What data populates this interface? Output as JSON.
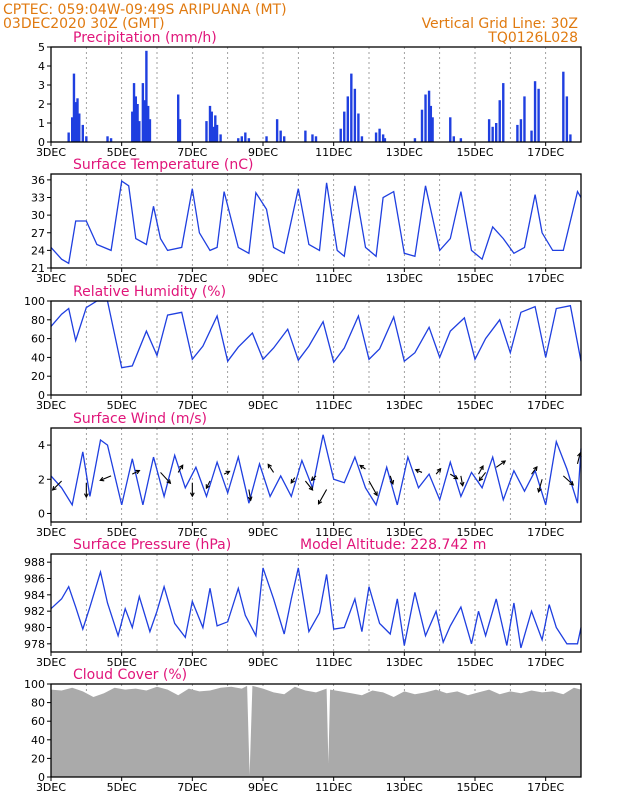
{
  "header": {
    "line1_left": "CPTEC:   059:04W-09:49S   ARIPUANA (MT)",
    "line2_left": "03DEC2020 30Z (GMT)",
    "line1_right": "Vertical Grid Line: 30Z",
    "line2_right": "TQ0126L028"
  },
  "x_labels": [
    "3DEC",
    "5DEC",
    "7DEC",
    "9DEC",
    "11DEC",
    "13DEC",
    "15DEC",
    "17DEC"
  ],
  "x_range_days": [
    3,
    18
  ],
  "colors": {
    "header": "#e07a10",
    "title": "#e0157a",
    "series": "#1f3fe0",
    "cloud": "#aaaaaa"
  },
  "chart_data": [
    {
      "type": "bar",
      "title": "Precipitation (mm/h)",
      "ylim": [
        0,
        5
      ],
      "yticks": [
        "0",
        "1",
        "2",
        "3",
        "4",
        "5"
      ],
      "grid": true,
      "x": [
        3.5,
        3.6,
        3.65,
        3.7,
        3.75,
        3.8,
        3.9,
        4.0,
        4.6,
        4.7,
        5.3,
        5.35,
        5.4,
        5.45,
        5.5,
        5.6,
        5.65,
        5.7,
        5.75,
        5.8,
        6.6,
        6.65,
        7.4,
        7.5,
        7.55,
        7.6,
        7.65,
        7.7,
        7.8,
        8.3,
        8.4,
        8.5,
        8.6,
        9.1,
        9.4,
        9.5,
        9.6,
        10.2,
        10.4,
        10.5,
        11.2,
        11.3,
        11.4,
        11.5,
        11.6,
        11.7,
        11.8,
        12.2,
        12.3,
        12.4,
        12.45,
        13.3,
        13.5,
        13.6,
        13.7,
        13.75,
        13.8,
        14.3,
        14.4,
        14.6,
        15.4,
        15.5,
        15.6,
        15.7,
        15.8,
        16.2,
        16.3,
        16.4,
        16.6,
        16.7,
        16.8,
        17.5,
        17.6,
        17.7
      ],
      "values": [
        0.5,
        1.3,
        3.6,
        2.1,
        2.3,
        1.5,
        0.9,
        0.3,
        0.3,
        0.2,
        1.6,
        3.1,
        2.4,
        2.0,
        1.1,
        3.1,
        2.2,
        4.8,
        1.9,
        1.2,
        2.5,
        1.2,
        1.1,
        1.9,
        1.6,
        0.8,
        1.4,
        0.9,
        0.4,
        0.2,
        0.3,
        0.5,
        0.2,
        0.3,
        1.2,
        0.6,
        0.3,
        0.6,
        0.4,
        0.3,
        0.7,
        1.6,
        2.4,
        3.6,
        2.8,
        1.5,
        0.3,
        0.5,
        0.7,
        0.4,
        0.2,
        0.2,
        1.7,
        2.5,
        2.7,
        1.9,
        1.3,
        1.3,
        0.3,
        0.2,
        1.2,
        0.8,
        1.0,
        2.2,
        3.1,
        0.9,
        1.2,
        2.4,
        0.6,
        3.2,
        2.8,
        3.7,
        2.4,
        0.4
      ]
    },
    {
      "type": "line",
      "title": "Surface Temperature (nC)",
      "ylim": [
        21,
        37
      ],
      "yticks": [
        "21",
        "24",
        "27",
        "30",
        "33",
        "36"
      ],
      "grid": true,
      "x": [
        3.0,
        3.3,
        3.5,
        3.7,
        4.0,
        4.3,
        4.7,
        5.0,
        5.2,
        5.4,
        5.7,
        5.9,
        6.1,
        6.3,
        6.7,
        7.0,
        7.2,
        7.5,
        7.7,
        7.9,
        8.3,
        8.6,
        8.8,
        9.1,
        9.3,
        9.6,
        10.0,
        10.3,
        10.6,
        10.8,
        11.1,
        11.3,
        11.6,
        11.9,
        12.2,
        12.4,
        12.7,
        13.0,
        13.3,
        13.6,
        14.0,
        14.3,
        14.6,
        14.9,
        15.2,
        15.5,
        15.8,
        16.1,
        16.4,
        16.7,
        16.9,
        17.2,
        17.5,
        17.9,
        18.0
      ],
      "values": [
        24.5,
        22.5,
        21.8,
        29.0,
        29.0,
        25.0,
        24.0,
        35.8,
        35.0,
        26.0,
        25.0,
        31.5,
        26.0,
        24.0,
        24.5,
        34.5,
        27.0,
        24.0,
        24.5,
        34.0,
        24.5,
        23.5,
        33.8,
        31.0,
        24.5,
        23.5,
        34.5,
        25.0,
        24.0,
        35.5,
        24.0,
        23.0,
        35.0,
        24.5,
        23.0,
        33.0,
        34.0,
        23.5,
        23.0,
        35.0,
        24.0,
        26.0,
        34.0,
        24.0,
        22.5,
        28.0,
        26.0,
        23.5,
        24.5,
        33.5,
        27.0,
        24.0,
        24.0,
        34.0,
        33.0
      ]
    },
    {
      "type": "line",
      "title": "Relative Humidity (%)",
      "ylim": [
        0,
        100
      ],
      "yticks": [
        "0",
        "20",
        "40",
        "60",
        "80",
        "100"
      ],
      "grid": true,
      "x": [
        3.0,
        3.3,
        3.5,
        3.7,
        4.0,
        4.3,
        4.6,
        5.0,
        5.3,
        5.7,
        6.0,
        6.3,
        6.7,
        7.0,
        7.3,
        7.7,
        8.0,
        8.3,
        8.7,
        9.0,
        9.3,
        9.7,
        10.0,
        10.3,
        10.7,
        11.0,
        11.3,
        11.7,
        12.0,
        12.3,
        12.7,
        13.0,
        13.3,
        13.7,
        14.0,
        14.3,
        14.7,
        15.0,
        15.3,
        15.7,
        16.0,
        16.3,
        16.7,
        17.0,
        17.3,
        17.7,
        18.0
      ],
      "values": [
        73,
        86,
        92,
        58,
        93,
        100,
        100,
        29,
        31,
        68,
        42,
        85,
        88,
        38,
        52,
        84,
        36,
        51,
        66,
        38,
        50,
        70,
        37,
        52,
        78,
        35,
        50,
        84,
        38,
        49,
        83,
        36,
        45,
        72,
        40,
        68,
        82,
        38,
        60,
        80,
        45,
        88,
        94,
        40,
        92,
        95,
        36
      ]
    },
    {
      "type": "line",
      "title": "Surface Wind (m/s)",
      "ylim": [
        -0.5,
        5
      ],
      "yticks": [
        "0",
        "2",
        "4"
      ],
      "grid": true,
      "x": [
        3.0,
        3.3,
        3.6,
        3.9,
        4.1,
        4.4,
        4.6,
        5.0,
        5.3,
        5.6,
        5.9,
        6.2,
        6.5,
        6.8,
        7.1,
        7.4,
        7.7,
        8.0,
        8.3,
        8.6,
        8.9,
        9.2,
        9.5,
        9.8,
        10.1,
        10.4,
        10.7,
        11.0,
        11.3,
        11.6,
        11.9,
        12.2,
        12.5,
        12.8,
        13.1,
        13.4,
        13.7,
        14.0,
        14.3,
        14.6,
        14.9,
        15.2,
        15.5,
        15.8,
        16.1,
        16.4,
        16.7,
        17.0,
        17.3,
        17.6,
        17.9,
        18.0
      ],
      "values": [
        2.2,
        1.5,
        0.5,
        3.6,
        1.0,
        4.3,
        4.0,
        0.5,
        3.2,
        0.5,
        3.3,
        1.0,
        3.4,
        1.5,
        2.7,
        1.0,
        3.0,
        1.2,
        3.3,
        0.6,
        2.9,
        1.0,
        2.2,
        1.0,
        3.1,
        1.5,
        4.6,
        2.0,
        1.8,
        3.3,
        1.5,
        0.5,
        2.7,
        0.5,
        3.3,
        1.5,
        2.3,
        0.8,
        3.0,
        1.0,
        2.4,
        1.5,
        3.3,
        0.8,
        2.5,
        1.3,
        2.5,
        0.5,
        4.2,
        2.6,
        0.6,
        3.8
      ],
      "arrows": [
        {
          "x": 3.3,
          "y": 1.9,
          "u": -1,
          "v": -1
        },
        {
          "x": 4.0,
          "y": 1.8,
          "u": 0,
          "v": -1.6
        },
        {
          "x": 4.7,
          "y": 2.2,
          "u": -1.2,
          "v": -0.5
        },
        {
          "x": 5.3,
          "y": 2.3,
          "u": 0.8,
          "v": 0.4
        },
        {
          "x": 6.1,
          "y": 2.4,
          "u": 1.1,
          "v": -1.2
        },
        {
          "x": 6.6,
          "y": 2.4,
          "u": 0.5,
          "v": 0.8
        },
        {
          "x": 7.0,
          "y": 1.8,
          "u": 0,
          "v": -1.5
        },
        {
          "x": 7.5,
          "y": 1.9,
          "u": -0.4,
          "v": -0.8
        },
        {
          "x": 7.9,
          "y": 2.3,
          "u": 0.6,
          "v": 0.3
        },
        {
          "x": 8.6,
          "y": 1.4,
          "u": 0.2,
          "v": -1.2
        },
        {
          "x": 9.3,
          "y": 2.4,
          "u": -0.6,
          "v": 0.9
        },
        {
          "x": 9.9,
          "y": 2.1,
          "u": -0.4,
          "v": -0.6
        },
        {
          "x": 10.2,
          "y": 1.9,
          "u": 0.8,
          "v": -1.0
        },
        {
          "x": 10.5,
          "y": 2.2,
          "u": -0.5,
          "v": -0.5
        },
        {
          "x": 10.8,
          "y": 1.4,
          "u": -0.9,
          "v": -1.6
        },
        {
          "x": 11.9,
          "y": 2.6,
          "u": -0.6,
          "v": 0.4
        },
        {
          "x": 12.0,
          "y": 1.9,
          "u": 0.9,
          "v": -1.6
        },
        {
          "x": 12.6,
          "y": 2.2,
          "u": 0.3,
          "v": -0.9
        },
        {
          "x": 13.5,
          "y": 2.4,
          "u": -0.7,
          "v": 0.3
        },
        {
          "x": 13.9,
          "y": 2.3,
          "u": 0.5,
          "v": 0.6
        },
        {
          "x": 14.3,
          "y": 2.3,
          "u": 0.8,
          "v": -0.5
        },
        {
          "x": 14.6,
          "y": 2.2,
          "u": 0.2,
          "v": -1.1
        },
        {
          "x": 15.1,
          "y": 2.3,
          "u": 0.5,
          "v": 0.9
        },
        {
          "x": 15.3,
          "y": 2.4,
          "u": -0.7,
          "v": -0.9
        },
        {
          "x": 15.6,
          "y": 2.7,
          "u": 1.0,
          "v": 0.7
        },
        {
          "x": 16.6,
          "y": 2.3,
          "u": 0.6,
          "v": 0.8
        },
        {
          "x": 16.9,
          "y": 2.0,
          "u": -0.4,
          "v": -1.4
        },
        {
          "x": 17.5,
          "y": 2.2,
          "u": 1.1,
          "v": -1.0
        },
        {
          "x": 17.9,
          "y": 2.9,
          "u": 0.3,
          "v": 1.2
        }
      ]
    },
    {
      "type": "line",
      "title": "Surface Pressure (hPa)",
      "subtitle": "Model Altitude: 228.742 m",
      "ylim": [
        977,
        989
      ],
      "yticks": [
        "978",
        "980",
        "982",
        "984",
        "986",
        "988"
      ],
      "grid": true,
      "x": [
        3.0,
        3.3,
        3.5,
        3.7,
        3.9,
        4.1,
        4.4,
        4.6,
        4.9,
        5.1,
        5.3,
        5.5,
        5.8,
        6.0,
        6.2,
        6.5,
        6.8,
        7.0,
        7.3,
        7.5,
        7.7,
        8.0,
        8.3,
        8.5,
        8.8,
        9.0,
        9.3,
        9.6,
        9.8,
        10.0,
        10.3,
        10.6,
        10.8,
        11.0,
        11.3,
        11.6,
        11.8,
        12.0,
        12.3,
        12.6,
        12.8,
        13.0,
        13.3,
        13.6,
        13.9,
        14.1,
        14.3,
        14.6,
        14.9,
        15.1,
        15.3,
        15.6,
        15.9,
        16.1,
        16.3,
        16.6,
        16.9,
        17.1,
        17.3,
        17.6,
        17.9,
        18.0
      ],
      "values": [
        982.3,
        983.5,
        985.0,
        982.5,
        979.8,
        982.5,
        986.8,
        983.0,
        979.0,
        982.3,
        980.0,
        983.8,
        979.5,
        982.0,
        985.0,
        980.5,
        978.8,
        983.2,
        980.0,
        984.8,
        980.2,
        980.7,
        984.8,
        981.5,
        979.0,
        987.3,
        983.5,
        979.2,
        983.5,
        987.3,
        979.5,
        981.8,
        986.5,
        979.8,
        980.0,
        983.5,
        979.5,
        985.0,
        980.5,
        979.2,
        983.5,
        977.8,
        984.3,
        979.0,
        982.0,
        978.2,
        980.2,
        982.5,
        978.0,
        982.0,
        979.0,
        983.5,
        977.8,
        983.0,
        977.5,
        982.0,
        978.5,
        982.8,
        980.0,
        978.0,
        978.0,
        980.0
      ]
    },
    {
      "type": "area",
      "title": "Cloud Cover (%)",
      "ylim": [
        0,
        100
      ],
      "yticks": [
        "0",
        "20",
        "40",
        "60",
        "80",
        "100"
      ],
      "grid": true,
      "x": [
        3.0,
        3.3,
        3.6,
        3.9,
        4.2,
        4.5,
        4.8,
        5.1,
        5.4,
        5.7,
        6.0,
        6.3,
        6.6,
        6.9,
        7.2,
        7.5,
        7.8,
        8.1,
        8.4,
        8.55,
        8.62,
        8.7,
        9.0,
        9.3,
        9.6,
        9.9,
        10.2,
        10.5,
        10.8,
        10.85,
        10.9,
        11.2,
        11.5,
        11.8,
        12.1,
        12.4,
        12.7,
        13.0,
        13.3,
        13.6,
        13.9,
        14.2,
        14.5,
        14.8,
        15.1,
        15.4,
        15.7,
        16.0,
        16.3,
        16.6,
        16.9,
        17.2,
        17.5,
        17.8,
        18.0
      ],
      "values": [
        94,
        93,
        96,
        92,
        86,
        90,
        96,
        94,
        95,
        93,
        97,
        94,
        88,
        95,
        92,
        93,
        96,
        97,
        95,
        98,
        2,
        98,
        95,
        91,
        89,
        97,
        93,
        91,
        95,
        15,
        94,
        92,
        90,
        88,
        93,
        91,
        86,
        92,
        89,
        91,
        94,
        90,
        92,
        88,
        91,
        94,
        89,
        92,
        90,
        93,
        91,
        92,
        89,
        96,
        94
      ]
    }
  ]
}
